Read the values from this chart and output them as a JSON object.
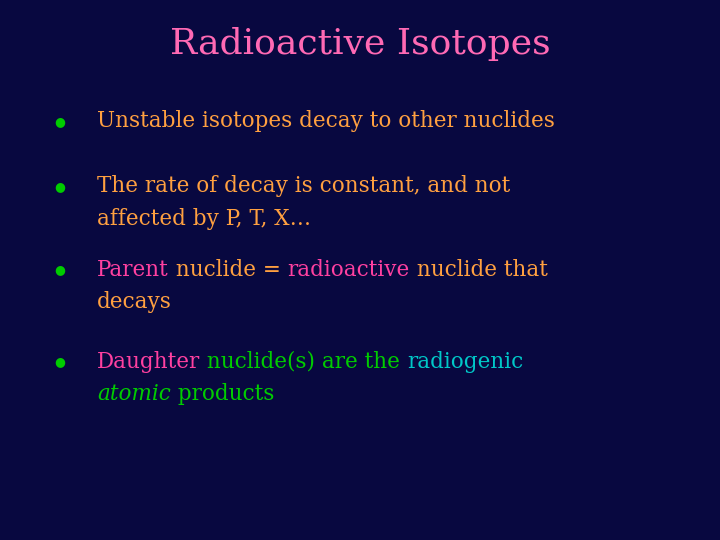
{
  "title": "Radioactive Isotopes",
  "title_color": "#ff69b4",
  "background_color": "#080840",
  "bullet_color": "#00cc00",
  "bullet_char": "●",
  "text_orange": "#ffa040",
  "text_pink": "#ff40a0",
  "text_cyan": "#00c8c8",
  "text_green": "#00cc00",
  "bullet1": "Unstable isotopes decay to other nuclides",
  "bullet2_line1": "The rate of decay is constant, and not",
  "bullet2_line2": "affected by P, T, X…",
  "bullet3_line1_parts": [
    {
      "text": "Parent",
      "color": "#ff40a0"
    },
    {
      "text": " nuclide = ",
      "color": "#ffa040"
    },
    {
      "text": "radioactive",
      "color": "#ff40a0"
    },
    {
      "text": " nuclide that",
      "color": "#ffa040"
    }
  ],
  "bullet3_line2": "decays",
  "bullet4_line1_parts": [
    {
      "text": "Daughter",
      "color": "#ff40a0"
    },
    {
      "text": " nuclide(s) are the ",
      "color": "#00cc00"
    },
    {
      "text": "radiogenic",
      "color": "#00c8c8"
    }
  ],
  "bullet4_line2_parts": [
    {
      "text": "atomic",
      "color": "#00cc00",
      "style": "italic"
    },
    {
      "text": " products",
      "color": "#00cc00",
      "style": "normal"
    }
  ]
}
